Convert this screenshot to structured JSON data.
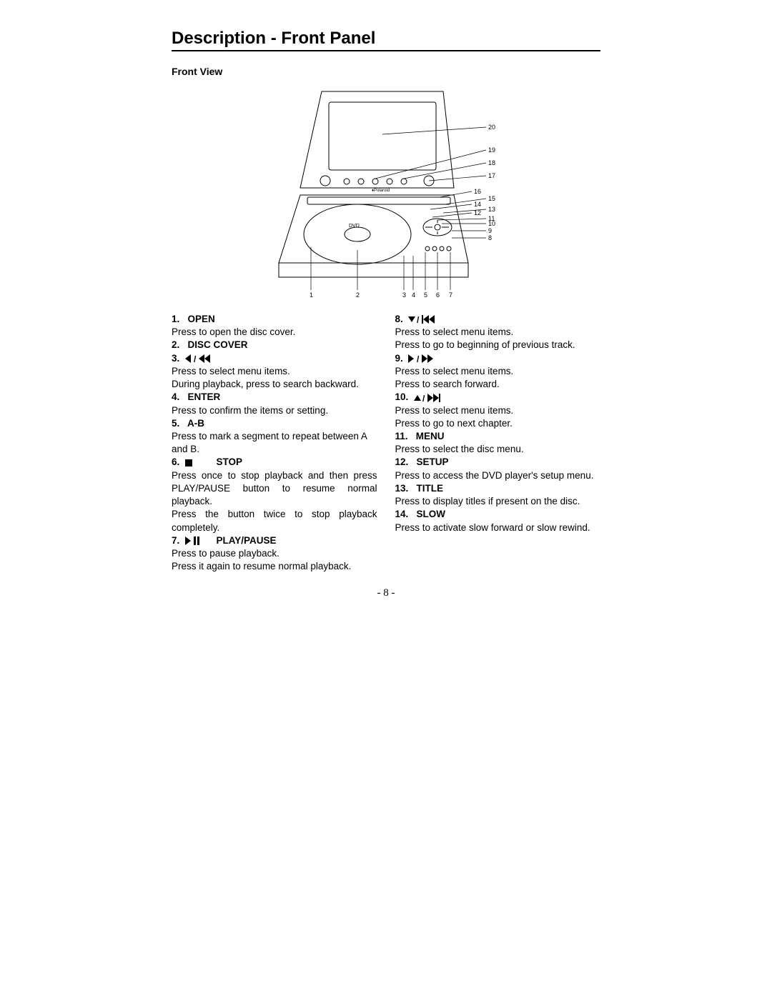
{
  "page": {
    "title": "Description - Front Panel",
    "subtitle": "Front View",
    "page_number": "- 8 -"
  },
  "diagram_labels": [
    "1",
    "2",
    "3",
    "4",
    "5",
    "6",
    "7",
    "8",
    "9",
    "10",
    "11",
    "12",
    "13",
    "14",
    "15",
    "16",
    "17",
    "18",
    "19",
    "20"
  ],
  "left_items": [
    {
      "num": "1.",
      "label": "OPEN",
      "icon": null,
      "desc": [
        "Press to open the disc cover."
      ]
    },
    {
      "num": "2.",
      "label": "DISC COVER",
      "icon": null,
      "desc": []
    },
    {
      "num": "3.",
      "label": "",
      "icon": "left-rewind",
      "desc": [
        "Press to select menu items.",
        "During playback, press to search backward."
      ],
      "justify": [
        false,
        true
      ]
    },
    {
      "num": "4.",
      "label": "ENTER",
      "icon": null,
      "desc": [
        "Press to confirm the items or setting."
      ]
    },
    {
      "num": "5.",
      "label": "A-B",
      "icon": null,
      "desc": [
        "Press to mark a segment to repeat between A and B."
      ]
    },
    {
      "num": "6.",
      "label": "STOP",
      "icon": "stop",
      "desc": [
        "Press once to stop playback and then press PLAY/PAUSE button to resume normal playback.",
        "Press the button twice to stop playback completely."
      ],
      "justify": [
        true,
        true
      ]
    },
    {
      "num": "7.",
      "label": "PLAY/PAUSE",
      "icon": "play-pause",
      "desc": [
        "Press to pause playback.",
        "Press it again to resume normal playback."
      ],
      "justify": [
        false,
        true
      ]
    }
  ],
  "right_items": [
    {
      "num": "8.",
      "label": "",
      "icon": "down-prev",
      "desc": [
        "Press to select menu items.",
        "Press to go to beginning of previous track."
      ],
      "justify": [
        false,
        true
      ]
    },
    {
      "num": "9.",
      "label": "",
      "icon": "right-fwd",
      "desc": [
        "Press to select menu items.",
        "Press to search forward."
      ]
    },
    {
      "num": "10.",
      "label": "",
      "icon": "up-next",
      "desc": [
        "Press to select menu items.",
        "Press to go to next chapter."
      ]
    },
    {
      "num": "11.",
      "label": "MENU",
      "icon": null,
      "desc": [
        "Press to select the disc menu."
      ]
    },
    {
      "num": "12.",
      "label": "SETUP",
      "icon": null,
      "desc": [
        "Press to access the DVD player's setup menu."
      ],
      "justify": [
        true
      ]
    },
    {
      "num": "13.",
      "label": "TITLE",
      "icon": null,
      "desc": [
        "Press to display titles if present on the disc."
      ]
    },
    {
      "num": "14.",
      "label": "SLOW",
      "icon": null,
      "desc": [
        "Press to activate slow forward or slow rewind."
      ]
    }
  ],
  "style": {
    "text_color": "#000000",
    "bg_color": "#ffffff",
    "title_fontsize": 24,
    "body_fontsize": 13.5
  }
}
